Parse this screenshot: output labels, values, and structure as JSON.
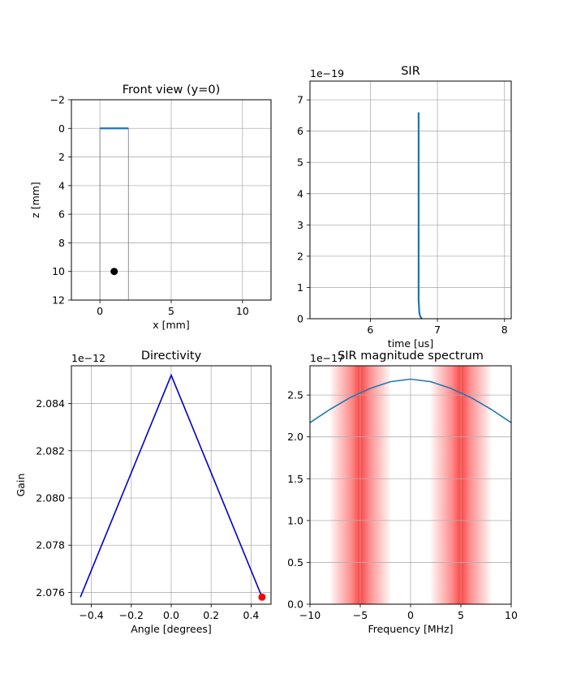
{
  "colors": {
    "line": "#1f77b4",
    "directivity": "#0000cc",
    "point": "#000000",
    "marker": "#ff0000",
    "band": "#ff3030",
    "grid": "#b0b0b0"
  },
  "chart_data": [
    {
      "type": "line",
      "title": "Front view (y=0)",
      "xlabel": "x [mm]",
      "ylabel": "z [mm]",
      "xlim": [
        -2,
        12
      ],
      "ylim": [
        12,
        -2
      ],
      "y_inverted": true,
      "xticks": [
        "0",
        "5",
        "10"
      ],
      "yticks": [
        "−2",
        "0",
        "2",
        "4",
        "6",
        "8",
        "10",
        "12"
      ],
      "transducer_segment": {
        "x": [
          0,
          2
        ],
        "z": [
          0,
          0
        ]
      },
      "beam_lines": {
        "x": [
          0,
          2
        ],
        "z": [
          0,
          12
        ]
      },
      "observation_point": {
        "x": 1,
        "z": 10
      },
      "grid": true
    },
    {
      "type": "line",
      "title": "SIR",
      "xlabel": "time [us]",
      "ylabel": "",
      "offset_text": "1e−19",
      "xlim": [
        5.1,
        8.1
      ],
      "ylim": [
        0,
        7.6
      ],
      "xticks": [
        "6",
        "7",
        "8"
      ],
      "yticks": [
        "0",
        "1",
        "2",
        "3",
        "4",
        "5",
        "6",
        "7"
      ],
      "series": [
        {
          "x": [
            6.72,
            6.72,
            6.73,
            6.74,
            6.75,
            6.77
          ],
          "y": [
            6.6,
            0.6,
            0.2,
            0.1,
            0.05,
            0
          ]
        }
      ],
      "grid": true
    },
    {
      "type": "line",
      "title": "Directivity",
      "xlabel": "Angle [degrees]",
      "ylabel": "Gain",
      "offset_text": "1e−12",
      "xlim": [
        -0.5,
        0.5
      ],
      "ylim": [
        2.0755,
        2.0856
      ],
      "xticks": [
        "−0.4",
        "−0.2",
        "0.0",
        "0.2",
        "0.4"
      ],
      "yticks": [
        "2.076",
        "2.078",
        "2.080",
        "2.082",
        "2.084"
      ],
      "series": [
        {
          "x": [
            -0.455,
            0.0,
            0.455
          ],
          "y": [
            2.0758,
            2.0852,
            2.0758
          ]
        }
      ],
      "marker_point": {
        "x": 0.455,
        "y": 2.0758
      },
      "grid": true
    },
    {
      "type": "line",
      "title": "SIR magnitude spectrum",
      "xlabel": "Frequency [MHz]",
      "ylabel": "",
      "offset_text": "1e−17",
      "xlim": [
        -10,
        10
      ],
      "ylim": [
        0,
        2.85
      ],
      "xticks": [
        "−10",
        "−5",
        "0",
        "5",
        "10"
      ],
      "yticks": [
        "0.0",
        "0.5",
        "1.0",
        "1.5",
        "2.0",
        "2.5"
      ],
      "series": [
        {
          "x": [
            -10,
            -8,
            -6,
            -4,
            -2,
            0,
            2,
            4,
            6,
            8,
            10
          ],
          "y": [
            2.17,
            2.33,
            2.47,
            2.58,
            2.66,
            2.69,
            2.66,
            2.58,
            2.47,
            2.33,
            2.17
          ]
        }
      ],
      "shaded_bands": [
        {
          "center": -5,
          "halfwidth": 3
        },
        {
          "center": 5,
          "halfwidth": 3
        }
      ],
      "grid": true
    }
  ]
}
